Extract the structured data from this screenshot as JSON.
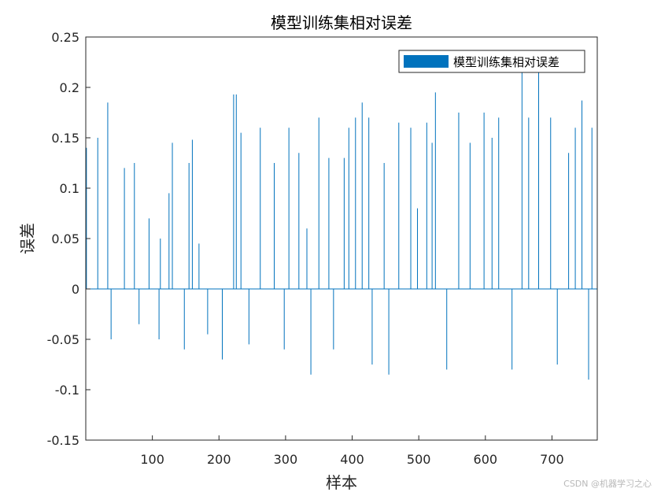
{
  "chart_data": {
    "type": "bar",
    "title": "模型训练集相对误差",
    "xlabel": "样本",
    "ylabel": "误差",
    "legend": {
      "label": "模型训练集相对误差",
      "position": "top-right"
    },
    "xlim": [
      0,
      768
    ],
    "ylim": [
      -0.15,
      0.25
    ],
    "xticks": [
      100,
      200,
      300,
      400,
      500,
      600,
      700
    ],
    "yticks": [
      -0.15,
      -0.1,
      -0.05,
      0,
      0.05,
      0.1,
      0.15,
      0.2,
      0.25
    ],
    "ytick_labels": [
      "-0.15",
      "-0.1",
      "-0.05",
      "0",
      "0.05",
      "0.1",
      "0.15",
      "0.2",
      "0.25"
    ],
    "grid": false,
    "series_color": "#0072BD",
    "x": [
      1,
      18,
      33,
      38,
      58,
      73,
      80,
      95,
      110,
      112,
      125,
      130,
      148,
      155,
      160,
      170,
      183,
      205,
      222,
      226,
      233,
      245,
      262,
      283,
      298,
      305,
      320,
      332,
      338,
      350,
      365,
      372,
      388,
      395,
      405,
      415,
      425,
      430,
      448,
      455,
      470,
      488,
      498,
      512,
      520,
      525,
      542,
      560,
      577,
      598,
      610,
      620,
      640,
      655,
      665,
      680,
      698,
      708,
      725,
      735,
      745,
      755,
      760,
      768
    ],
    "values": [
      0.14,
      0.15,
      0.185,
      -0.05,
      0.12,
      0.125,
      -0.035,
      0.07,
      -0.05,
      0.05,
      0.095,
      0.145,
      -0.06,
      0.125,
      0.148,
      0.045,
      -0.045,
      -0.07,
      0.193,
      0.193,
      0.155,
      -0.055,
      0.16,
      0.125,
      -0.06,
      0.16,
      0.135,
      0.06,
      -0.085,
      0.17,
      0.13,
      -0.06,
      0.13,
      0.16,
      0.17,
      0.185,
      0.17,
      -0.075,
      0.125,
      -0.085,
      0.165,
      0.16,
      0.08,
      0.165,
      0.145,
      0.195,
      -0.08,
      0.175,
      0.145,
      0.175,
      0.15,
      0.17,
      -0.08,
      0.22,
      0.17,
      0.215,
      0.17,
      -0.075,
      0.135,
      0.16,
      0.187,
      -0.09,
      0.16,
      0.137
    ]
  },
  "watermark": "CSDN @机器学习之心"
}
